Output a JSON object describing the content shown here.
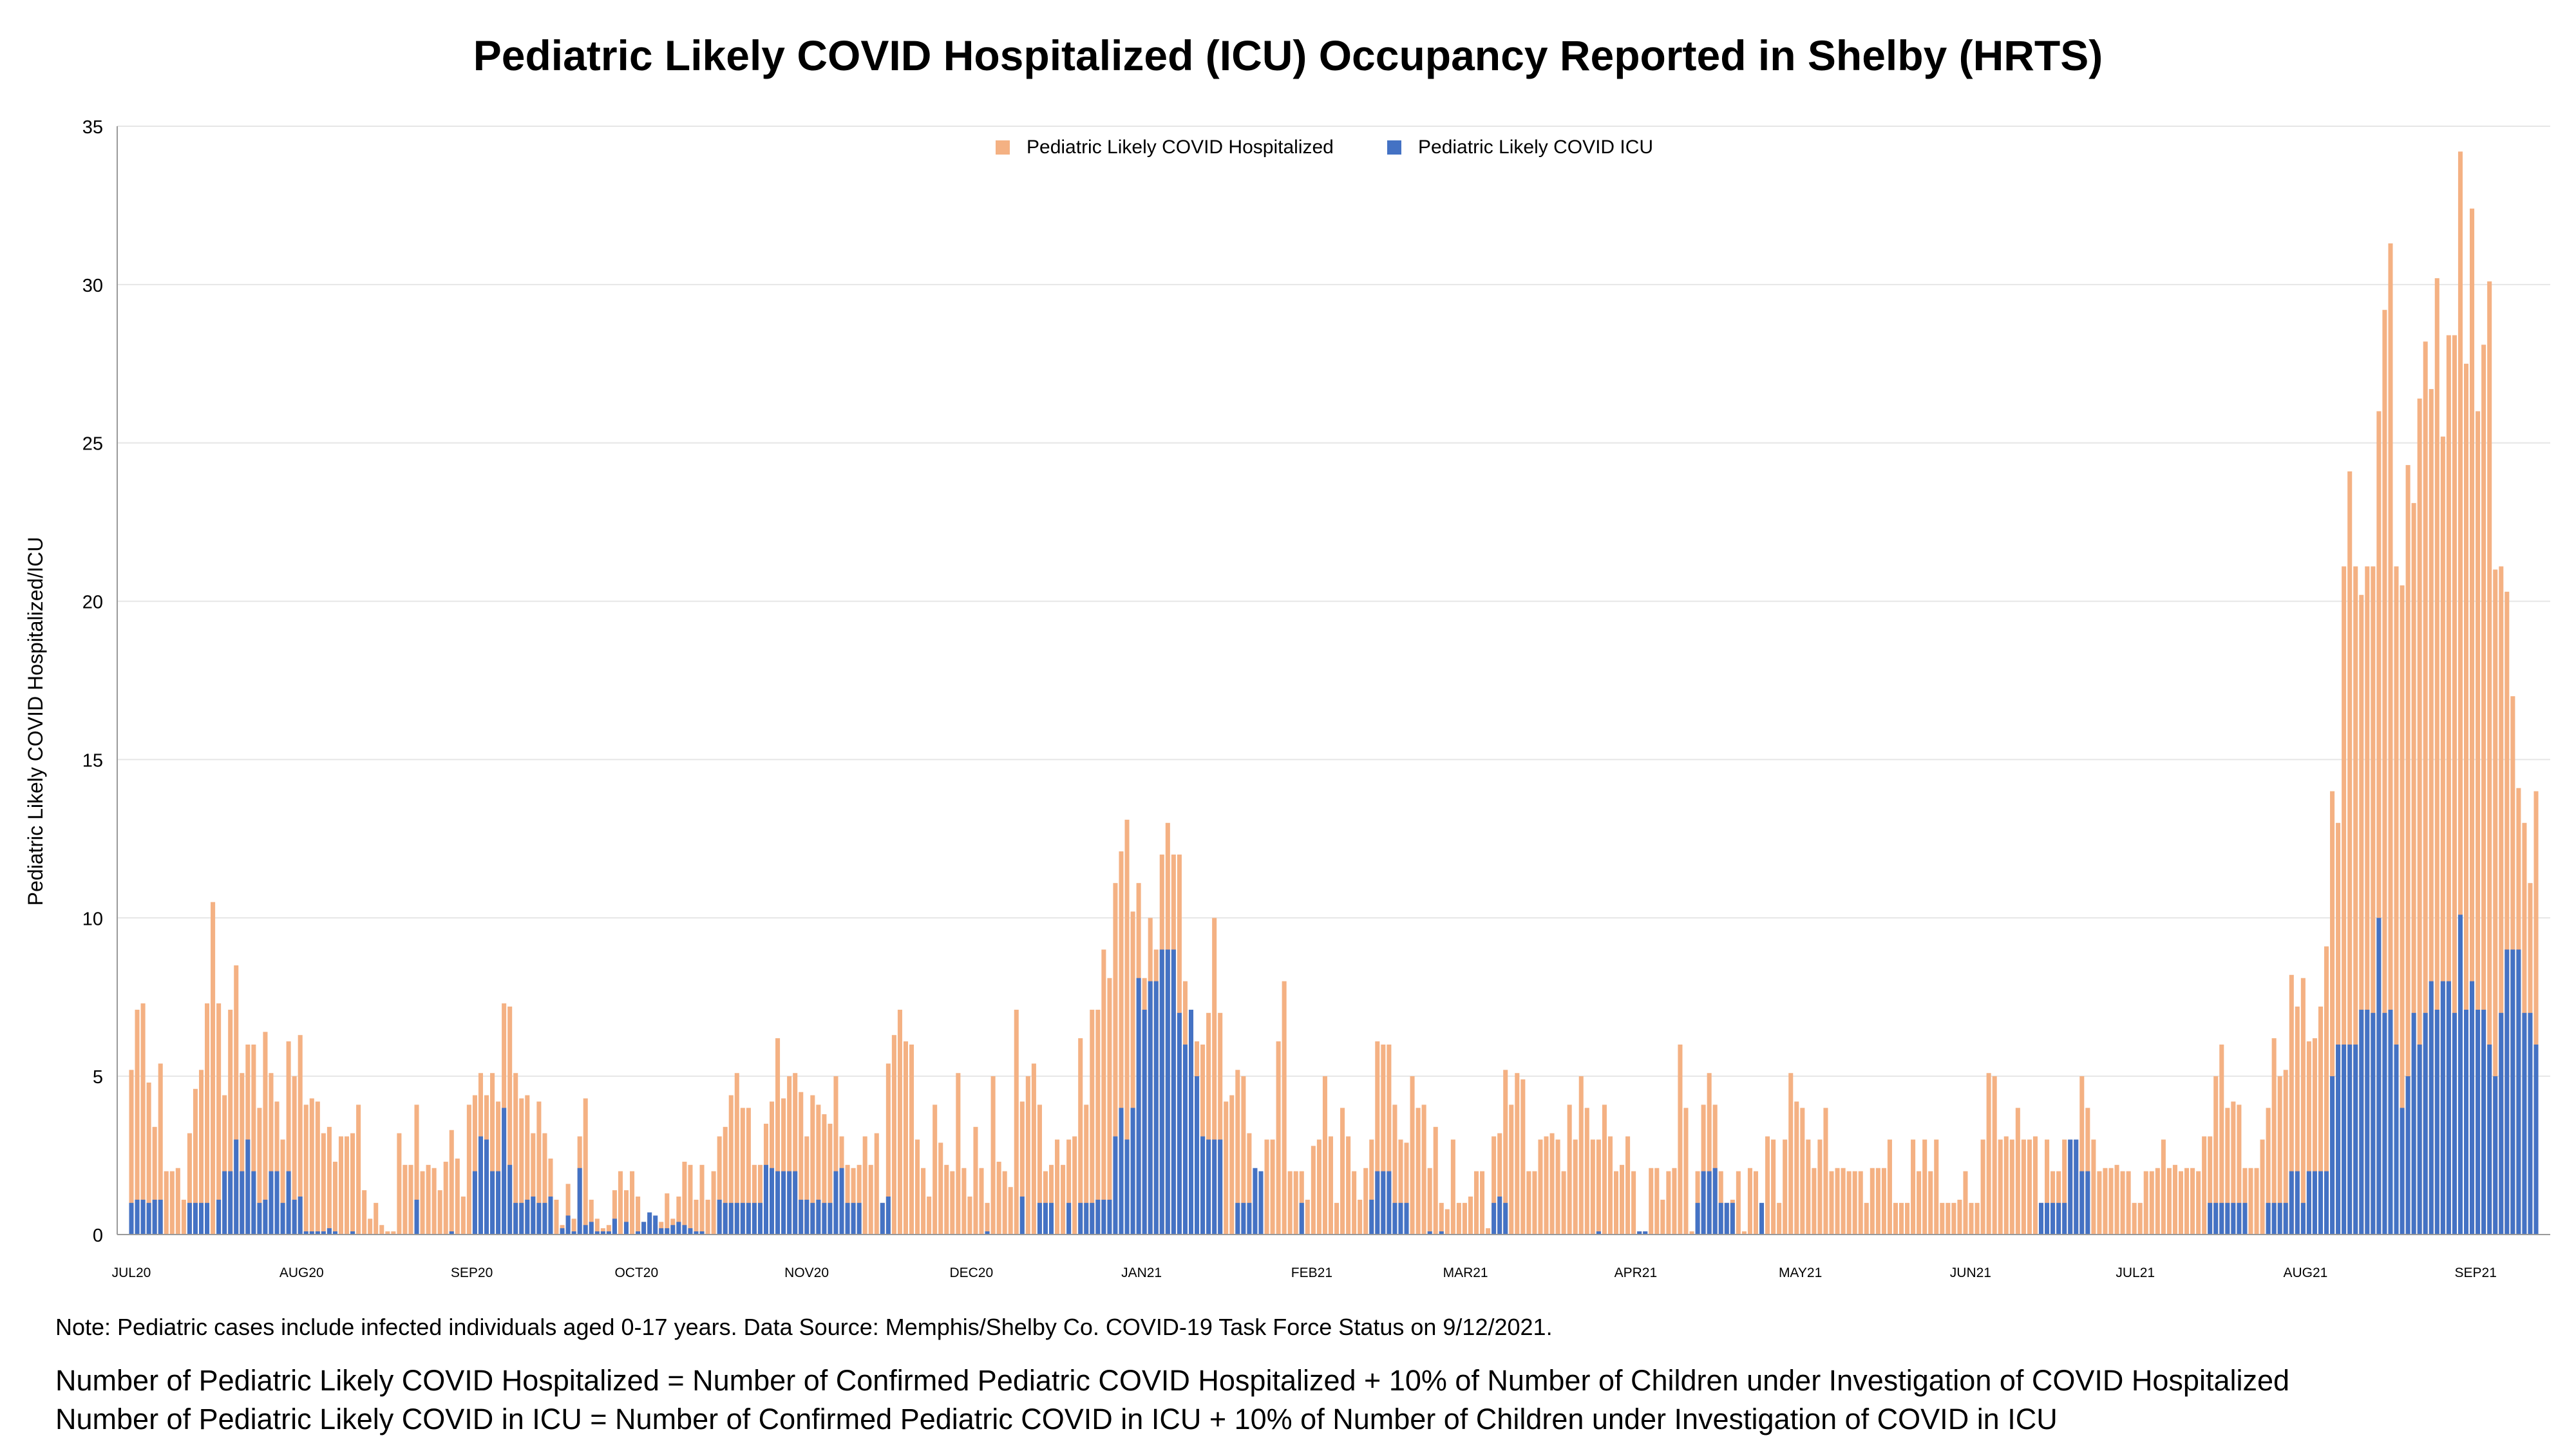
{
  "title": "Pediatric Likely COVID Hospitalized (ICU) Occupancy Reported in Shelby (HRTS)",
  "note": "Note: Pediatric cases include infected individuals aged 0-17 years. Data Source: Memphis/Shelby Co. COVID-19 Task Force Status on 9/12/2021.",
  "formula_hosp": "Number of Pediatric Likely COVID Hospitalized = Number of Confirmed Pediatric COVID Hospitalized + 10% of Number of Children under Investigation of COVID Hospitalized",
  "formula_icu": "Number of Pediatric Likely COVID in ICU = Number of Confirmed Pediatric COVID in ICU + 10% of Number of Children under Investigation of COVID in ICU",
  "colors": {
    "hospitalized": "#f4b183",
    "icu": "#4472c4",
    "grid": "#e6e6e6",
    "axis": "#9a9a9a"
  },
  "chart_data": {
    "type": "bar",
    "title": "Pediatric Likely COVID Hospitalized (ICU) Occupancy Reported in Shelby (HRTS)",
    "ylabel": "Pediatric Likely COVID Hospitalized/ICU",
    "xlabel": "",
    "ylim": [
      0,
      35
    ],
    "yticks": [
      0,
      5,
      10,
      15,
      20,
      25,
      30,
      35
    ],
    "grid": "horizontal",
    "legend_position": "top-center",
    "x_start": "2020-07-01",
    "x_end": "2021-09-12",
    "month_ticks": [
      "JUL20",
      "AUG20",
      "SEP20",
      "OCT20",
      "NOV20",
      "DEC20",
      "JAN21",
      "FEB21",
      "MAR21",
      "APR21",
      "MAY21",
      "JUN21",
      "JUL21",
      "AUG21",
      "SEP21"
    ],
    "series": [
      {
        "name": "Pediatric Likely COVID Hospitalized",
        "color": "#f4b183",
        "values": [
          5.2,
          7.1,
          7.3,
          4.8,
          3.4,
          5.4,
          2.0,
          2.0,
          2.1,
          1.1,
          3.2,
          4.6,
          5.2,
          7.3,
          10.5,
          7.3,
          4.4,
          7.1,
          8.5,
          5.1,
          6.0,
          6.0,
          4.0,
          6.4,
          5.1,
          4.2,
          3.0,
          6.1,
          5.0,
          6.3,
          4.1,
          4.3,
          4.2,
          3.2,
          3.4,
          2.3,
          3.1,
          3.1,
          3.2,
          4.1,
          1.4,
          0.5,
          1.0,
          0.3,
          0.1,
          0.1,
          3.2,
          2.2,
          2.2,
          4.1,
          2.0,
          2.2,
          2.1,
          1.4,
          2.3,
          3.3,
          2.4,
          1.2,
          4.1,
          4.4,
          5.1,
          4.4,
          5.1,
          4.2,
          7.3,
          7.2,
          5.1,
          4.3,
          4.4,
          3.2,
          4.2,
          3.2,
          2.4,
          1.1,
          0.3,
          1.6,
          0.5,
          3.1,
          4.3,
          1.1,
          0.5,
          0.2,
          0.3,
          1.4,
          2.0,
          1.4,
          2.0,
          1.2,
          0.4,
          0.6,
          0.3,
          0.4,
          1.3,
          0.5,
          1.2,
          2.3,
          2.2,
          1.1,
          2.2,
          1.1,
          2.0,
          3.1,
          3.4,
          4.4,
          5.1,
          4.0,
          4.0,
          2.2,
          2.2,
          3.5,
          4.2,
          6.2,
          4.3,
          5.0,
          5.1,
          4.5,
          3.1,
          4.4,
          4.1,
          3.8,
          3.5,
          5.0,
          3.1,
          2.2,
          2.1,
          2.2,
          3.1,
          2.2,
          3.2,
          1.0,
          5.4,
          6.3,
          7.1,
          6.1,
          6.0,
          3.0,
          2.1,
          1.2,
          4.1,
          2.9,
          2.2,
          2.0,
          5.1,
          2.1,
          1.2,
          3.4,
          2.1,
          1.0,
          5.0,
          2.3,
          2.0,
          1.5,
          7.1,
          4.2,
          5.0,
          5.4,
          4.1,
          2.0,
          2.2,
          3.0,
          2.2,
          3.0,
          3.1,
          6.2,
          4.1,
          7.1,
          7.1,
          9.0,
          8.1,
          11.1,
          12.1,
          13.1,
          10.2,
          11.1,
          8.1,
          10.0,
          9.0,
          12.0,
          13.0,
          12.0,
          12.0,
          8.0,
          6.2,
          6.1,
          6.0,
          7.0,
          10.0,
          7.0,
          4.2,
          4.4,
          5.2,
          5.0,
          3.2,
          1.0,
          1.0,
          3.0,
          3.0,
          6.1,
          8.0,
          2.0,
          2.0,
          2.0,
          1.1,
          2.8,
          3.0,
          5.0,
          3.1,
          1.0,
          4.0,
          3.1,
          2.0,
          1.1,
          2.1,
          3.0,
          6.1,
          6.0,
          6.0,
          4.1,
          3.0,
          2.9,
          5.0,
          4.0,
          4.1,
          2.1,
          3.4,
          1.0,
          0.8,
          3.0,
          1.0,
          1.0,
          1.2,
          2.0,
          2.0,
          0.2,
          3.1,
          3.2,
          5.2,
          4.1,
          5.1,
          4.9,
          2.0,
          2.0,
          3.0,
          3.1,
          3.2,
          3.0,
          2.0,
          4.1,
          3.0,
          5.0,
          4.0,
          3.0,
          3.0,
          4.1,
          3.1,
          2.0,
          2.2,
          3.1,
          2.0,
          0.1,
          0.1,
          2.1,
          2.1,
          1.1,
          2.0,
          2.1,
          6.0,
          4.0,
          0.1,
          2.0,
          4.1,
          5.1,
          4.1,
          2.0,
          1.0,
          1.1,
          2.0,
          0.1,
          2.1,
          2.0,
          0.1,
          3.1,
          3.0,
          1.0,
          3.0,
          5.1,
          4.2,
          4.0,
          3.0,
          2.1,
          3.0,
          4.0,
          2.0,
          2.1,
          2.1,
          2.0,
          2.0,
          2.0,
          1.0,
          2.1,
          2.1,
          2.1,
          3.0,
          1.0,
          1.0,
          1.0,
          3.0,
          2.0,
          3.0,
          2.0,
          3.0,
          1.0,
          1.0,
          1.0,
          1.1,
          2.0,
          1.0,
          1.0,
          3.0,
          5.1,
          5.0,
          3.0,
          3.1,
          3.0,
          4.0,
          3.0,
          3.0,
          3.1,
          1.0,
          3.0,
          2.0,
          2.0,
          3.0,
          3.0,
          3.0,
          5.0,
          4.0,
          3.0,
          2.0,
          2.1,
          2.1,
          2.2,
          2.0,
          2.0,
          1.0,
          1.0,
          2.0,
          2.0,
          2.1,
          3.0,
          2.1,
          2.2,
          2.0,
          2.1,
          2.1,
          2.0,
          3.1,
          3.1,
          5.0,
          6.0,
          4.0,
          4.2,
          4.1,
          2.1,
          2.1,
          2.1,
          3.0,
          4.0,
          6.2,
          5.0,
          5.2,
          8.2,
          7.2,
          8.1,
          6.1,
          6.2,
          7.2,
          9.1,
          14.0,
          13.0,
          21.1,
          24.1,
          21.1,
          20.2,
          21.1,
          21.1,
          26.0,
          29.2,
          31.3,
          21.1,
          20.5,
          24.3,
          23.1,
          26.4,
          28.2,
          26.7,
          30.2,
          25.2,
          28.4,
          28.4,
          34.2,
          27.5,
          32.4,
          26.0,
          28.1,
          30.1,
          21.0,
          21.1,
          20.3,
          17.0,
          14.1,
          13.0,
          11.1,
          14.0
        ]
      },
      {
        "name": "Pediatric Likely COVID ICU",
        "color": "#4472c4",
        "values": [
          1.0,
          1.1,
          1.1,
          1.0,
          1.1,
          1.1,
          0,
          0,
          0,
          0,
          1.0,
          1.0,
          1.0,
          1.0,
          0,
          1.1,
          2.0,
          2.0,
          3.0,
          2.0,
          3.0,
          2.0,
          1.0,
          1.1,
          2.0,
          2.0,
          1.0,
          2.0,
          1.1,
          1.2,
          0.1,
          0.1,
          0.1,
          0.1,
          0.2,
          0.1,
          0,
          0,
          0.1,
          0,
          0,
          0,
          0,
          0,
          0,
          0,
          0,
          0,
          0,
          1.1,
          0,
          0,
          0,
          0,
          0,
          0.1,
          0,
          0,
          0,
          2.0,
          3.1,
          3.0,
          2.0,
          2.0,
          4.0,
          2.2,
          1.0,
          1.0,
          1.1,
          1.2,
          1.0,
          1.0,
          1.2,
          0,
          0.2,
          0.6,
          0.1,
          2.1,
          0.3,
          0.4,
          0.1,
          0.1,
          0.1,
          0.5,
          0,
          0.4,
          0,
          0.1,
          0.4,
          0.7,
          0.6,
          0.2,
          0.2,
          0.3,
          0.4,
          0.3,
          0.2,
          0.1,
          0.1,
          0,
          0,
          1.1,
          1.0,
          1.0,
          1.0,
          1.0,
          1.0,
          1.0,
          1.0,
          2.2,
          2.1,
          2.0,
          2.0,
          2.0,
          2.0,
          1.1,
          1.1,
          1.0,
          1.1,
          1.0,
          1.0,
          2.0,
          2.1,
          1.0,
          1.0,
          1.0,
          0,
          0,
          0,
          1.0,
          1.2,
          0,
          0,
          0,
          0,
          0,
          0,
          0,
          0,
          0,
          0,
          0,
          0,
          0,
          0,
          0,
          0,
          0.1,
          0,
          0,
          0,
          0,
          0,
          1.2,
          0,
          0,
          1.0,
          1.0,
          1.0,
          0,
          0,
          1.0,
          0,
          1.0,
          1.0,
          1.0,
          1.1,
          1.1,
          1.1,
          3.1,
          4.0,
          3.0,
          4.0,
          8.1,
          7.1,
          8.0,
          8.0,
          9.0,
          9.0,
          9.0,
          7.0,
          6.0,
          7.1,
          5.0,
          3.1,
          3.0,
          3.0,
          3.0,
          0,
          0,
          1.0,
          1.0,
          1.0,
          2.1,
          2.0,
          0,
          0,
          0,
          0,
          0,
          0,
          1.0,
          0,
          0,
          0,
          0,
          0,
          0,
          0,
          0,
          0,
          0,
          0,
          1.1,
          2.0,
          2.0,
          2.0,
          1.0,
          1.0,
          1.0,
          0,
          0,
          0,
          0.1,
          0,
          0.1,
          0,
          0,
          0,
          0,
          0,
          0,
          0,
          0,
          1.0,
          1.2,
          1.0,
          0,
          0,
          0,
          0,
          0,
          0,
          0,
          0,
          0,
          0,
          0,
          0,
          0,
          0,
          0,
          0.1,
          0,
          0,
          0,
          0,
          0,
          0,
          0.1,
          0.1,
          0,
          0,
          0,
          0,
          0,
          0,
          0,
          0,
          1.0,
          2.0,
          2.0,
          2.1,
          1.0,
          1.0,
          1.0,
          0,
          0,
          0,
          0,
          1.0,
          0,
          0,
          0,
          0,
          0,
          0,
          0,
          0,
          0,
          0,
          0,
          0,
          0,
          0,
          0,
          0,
          0,
          0,
          0,
          0,
          0,
          0,
          0,
          0,
          0,
          0,
          0,
          0,
          0,
          0,
          0,
          0,
          0,
          0,
          0,
          0,
          0,
          0,
          0,
          0,
          0,
          0,
          0,
          0,
          0,
          0,
          0,
          1.0,
          1.0,
          1.0,
          1.0,
          1.0,
          3.0,
          3.0,
          2.0,
          2.0,
          0,
          0,
          0,
          0,
          0,
          0,
          0,
          0,
          0,
          0,
          0,
          0,
          0,
          0,
          0,
          0,
          0,
          0,
          0,
          0,
          1.0,
          1.0,
          1.0,
          1.0,
          1.0,
          1.0,
          1.0,
          0,
          0,
          0,
          1.0,
          1.0,
          1.0,
          1.0,
          2.0,
          2.0,
          1.0,
          2.0,
          2.0,
          2.0,
          2.0,
          5.0,
          6.0,
          6.0,
          6.0,
          6.0,
          7.1,
          7.1,
          7.0,
          10.0,
          7.0,
          7.1,
          6.0,
          4.0,
          5.0,
          7.0,
          6.0,
          7.0,
          8.0,
          7.1,
          8.0,
          8.0,
          7.0,
          10.1,
          7.1,
          8.0,
          7.1,
          7.1,
          6.0,
          5.0,
          7.0,
          9.0,
          9.0,
          9.0,
          7.0,
          7.0,
          6.0,
          2.0,
          1.0
        ]
      }
    ]
  }
}
